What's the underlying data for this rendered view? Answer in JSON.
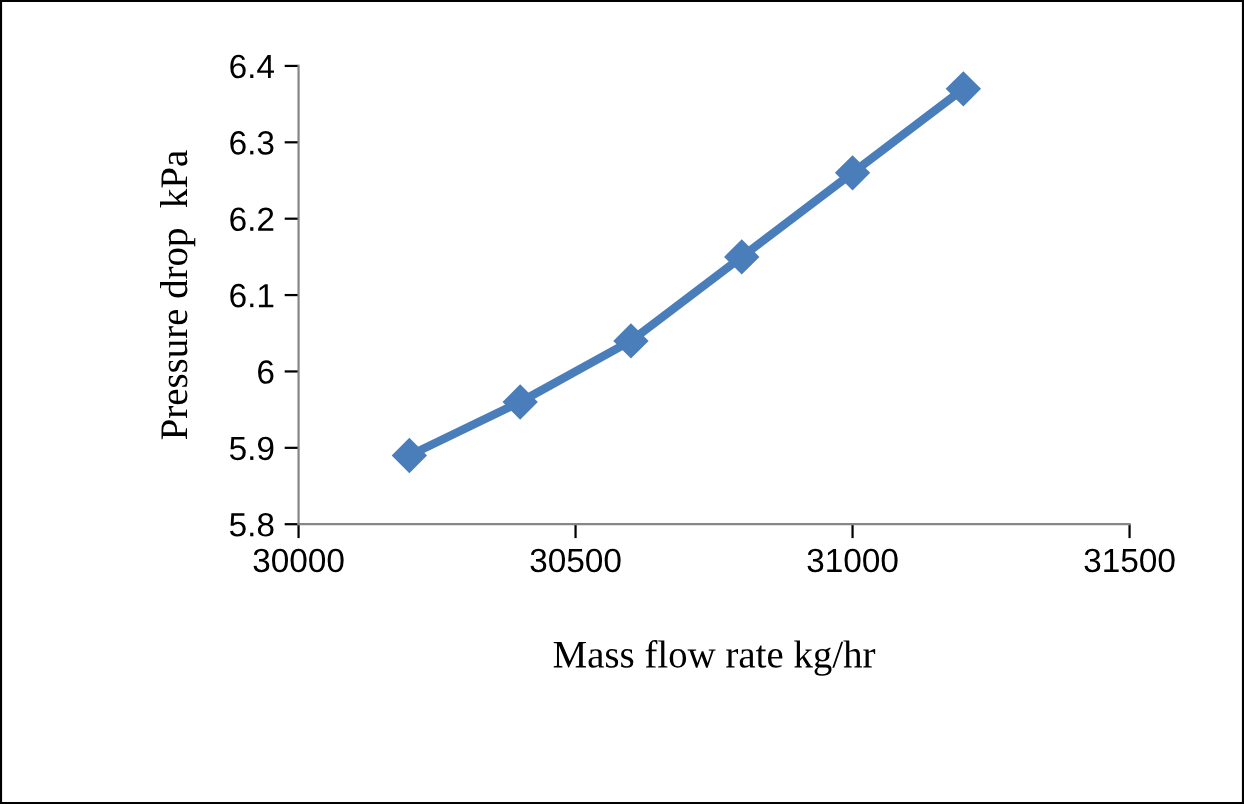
{
  "chart_data": {
    "type": "line",
    "xlabel": "Mass flow rate kg/hr",
    "ylabel": "Pressure drop  kPa",
    "x": [
      30200,
      30400,
      30600,
      30800,
      31000,
      31200
    ],
    "series": [
      {
        "color": "#4a7ebb",
        "values": [
          5.89,
          5.96,
          6.04,
          6.15,
          6.26,
          6.37
        ]
      }
    ],
    "xlim": [
      30000,
      31500
    ],
    "xticks": [
      30000,
      30500,
      31000,
      31500
    ],
    "ylim": [
      5.8,
      6.4
    ],
    "yticks": [
      5.8,
      5.9,
      6,
      6.1,
      6.2,
      6.3,
      6.4
    ],
    "grid": false,
    "legend": false,
    "marker": "diamond",
    "line_style": "solid"
  }
}
